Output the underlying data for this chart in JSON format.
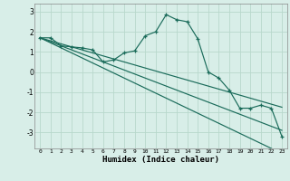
{
  "xlabel": "Humidex (Indice chaleur)",
  "background_color": "#d8eee8",
  "grid_color": "#b8d8cc",
  "line_color": "#1a6b5a",
  "x_ticks": [
    0,
    1,
    2,
    3,
    4,
    5,
    6,
    7,
    8,
    9,
    10,
    11,
    12,
    13,
    14,
    15,
    16,
    17,
    18,
    19,
    20,
    21,
    22,
    23
  ],
  "ylim": [
    -3.8,
    3.4
  ],
  "yticks": [
    -3,
    -2,
    -1,
    0,
    1,
    2,
    3
  ],
  "curve": [
    1.7,
    1.7,
    1.3,
    1.25,
    1.2,
    1.1,
    0.5,
    0.6,
    0.95,
    1.05,
    1.8,
    2.0,
    2.85,
    2.6,
    2.5,
    1.65,
    0.0,
    -0.3,
    -0.9,
    -1.8,
    -1.8,
    -1.65,
    -1.8,
    -3.2
  ],
  "linear1": [
    1.7,
    1.55,
    1.4,
    1.25,
    1.1,
    0.95,
    0.8,
    0.65,
    0.5,
    0.35,
    0.2,
    0.05,
    -0.1,
    -0.25,
    -0.4,
    -0.55,
    -0.7,
    -0.85,
    -1.0,
    -1.15,
    -1.3,
    -1.45,
    -1.6,
    -1.75
  ],
  "linear2": [
    1.7,
    1.5,
    1.3,
    1.1,
    0.9,
    0.7,
    0.5,
    0.3,
    0.1,
    -0.1,
    -0.3,
    -0.5,
    -0.7,
    -0.9,
    -1.1,
    -1.3,
    -1.5,
    -1.7,
    -1.9,
    -2.1,
    -2.3,
    -2.5,
    -2.7,
    -2.9
  ],
  "linear3": [
    1.7,
    1.45,
    1.2,
    0.95,
    0.7,
    0.45,
    0.2,
    -0.05,
    -0.3,
    -0.55,
    -0.8,
    -1.05,
    -1.3,
    -1.55,
    -1.8,
    -2.05,
    -2.3,
    -2.55,
    -2.8,
    -3.05,
    -3.3,
    -3.55,
    -3.8,
    -4.05
  ]
}
